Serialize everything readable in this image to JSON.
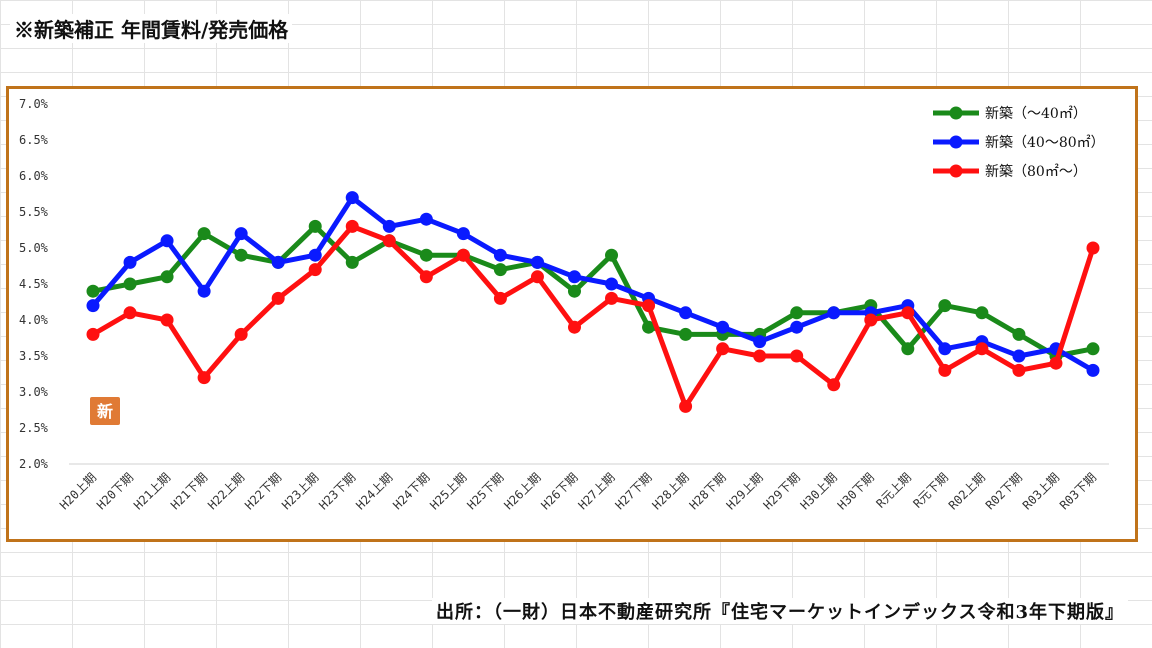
{
  "page": {
    "title": "※新築補正 年間賃料/発売価格",
    "source": "出所：（一財）日本不動産研究所『住宅マーケットインデックス令和3年下期版』",
    "frame_color": "#c0731a"
  },
  "chart_data": {
    "type": "line",
    "title": "",
    "xlabel": "",
    "ylabel": "",
    "ylim": [
      2.0,
      7.0
    ],
    "y_ticks": [
      "7.0%",
      "6.5%",
      "6.0%",
      "5.5%",
      "5.0%",
      "4.5%",
      "4.0%",
      "3.5%",
      "3.0%",
      "2.5%",
      "2.0%"
    ],
    "grid": false,
    "legend_position": "top-right",
    "badge": "新",
    "categories": [
      "H20上期",
      "H20下期",
      "H21上期",
      "H21下期",
      "H22上期",
      "H22下期",
      "H23上期",
      "H23下期",
      "H24上期",
      "H24下期",
      "H25上期",
      "H25下期",
      "H26上期",
      "H26下期",
      "H27上期",
      "H27下期",
      "H28上期",
      "H28下期",
      "H29上期",
      "H29下期",
      "H30上期",
      "H30下期",
      "R元上期",
      "R元下期",
      "R02上期",
      "R02下期",
      "R03上期",
      "R03下期"
    ],
    "series": [
      {
        "name": "新築（～40㎡）",
        "color": "#1a8a1a",
        "values": [
          4.4,
          4.5,
          4.6,
          5.2,
          4.9,
          4.8,
          5.3,
          4.8,
          5.1,
          4.9,
          4.9,
          4.7,
          4.8,
          4.4,
          4.9,
          3.9,
          3.8,
          3.8,
          3.8,
          4.1,
          4.1,
          4.2,
          3.6,
          4.2,
          4.1,
          3.8,
          3.5,
          3.6
        ]
      },
      {
        "name": "新築（40～80㎡）",
        "color": "#0a1aff",
        "values": [
          4.2,
          4.8,
          5.1,
          4.4,
          5.2,
          4.8,
          4.9,
          5.7,
          5.3,
          5.4,
          5.2,
          4.9,
          4.8,
          4.6,
          4.5,
          4.3,
          4.1,
          3.9,
          3.7,
          3.9,
          4.1,
          4.1,
          4.2,
          3.6,
          3.7,
          3.5,
          3.6,
          3.3
        ]
      },
      {
        "name": "新築（80㎡～）",
        "color": "#ff1010",
        "values": [
          3.8,
          4.1,
          4.0,
          3.2,
          3.8,
          4.3,
          4.7,
          5.3,
          5.1,
          4.6,
          4.9,
          4.3,
          4.6,
          3.9,
          4.3,
          4.2,
          2.8,
          3.6,
          3.5,
          3.5,
          3.1,
          4.0,
          4.1,
          3.3,
          3.6,
          3.3,
          3.4,
          5.0
        ]
      }
    ]
  }
}
